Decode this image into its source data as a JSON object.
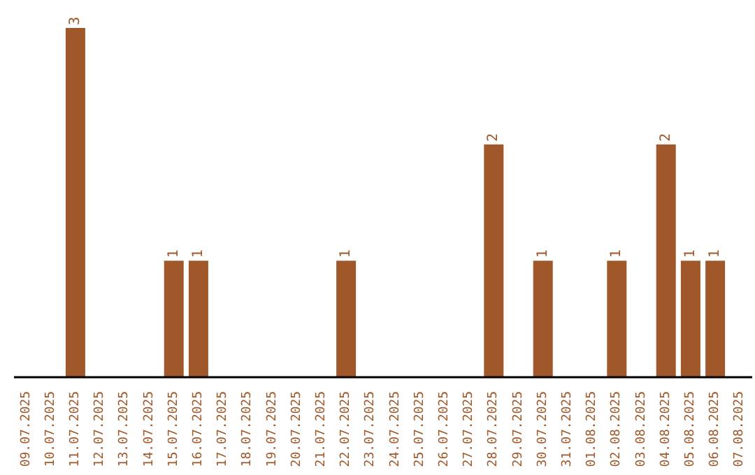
{
  "chart_data": {
    "type": "bar",
    "categories": [
      "09.07.2025",
      "10.07.2025",
      "11.07.2025",
      "12.07.2025",
      "13.07.2025",
      "14.07.2025",
      "15.07.2025",
      "16.07.2025",
      "17.07.2025",
      "18.07.2025",
      "19.07.2025",
      "20.07.2025",
      "21.07.2025",
      "22.07.2025",
      "23.07.2025",
      "24.07.2025",
      "25.07.2025",
      "26.07.2025",
      "27.07.2025",
      "28.07.2025",
      "29.07.2025",
      "30.07.2025",
      "31.07.2025",
      "01.08.2025",
      "02.08.2025",
      "03.08.2025",
      "04.08.2025",
      "05.08.2025",
      "06.08.2025",
      "07.08.2025"
    ],
    "values": [
      0,
      0,
      3,
      0,
      0,
      0,
      1,
      1,
      0,
      0,
      0,
      0,
      0,
      1,
      0,
      0,
      0,
      0,
      0,
      2,
      0,
      1,
      0,
      0,
      1,
      0,
      2,
      1,
      1,
      0
    ],
    "value_labels": [
      null,
      null,
      "3",
      null,
      null,
      null,
      "1",
      "1",
      null,
      null,
      null,
      null,
      null,
      "1",
      null,
      null,
      null,
      null,
      null,
      "2",
      null,
      "1",
      null,
      null,
      "1",
      null,
      "2",
      "1",
      "1",
      null
    ],
    "color": "#a0572a",
    "tick_labels": "x",
    "grid": false,
    "legend": false
  }
}
